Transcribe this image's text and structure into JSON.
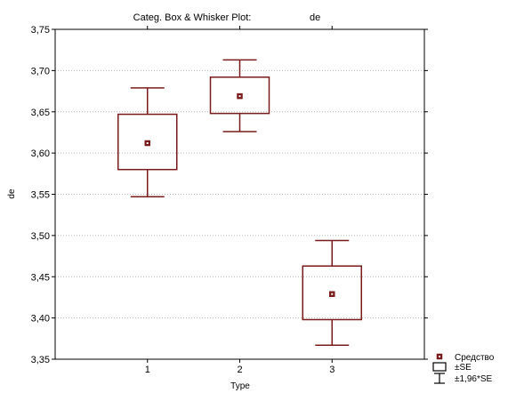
{
  "chart_data": {
    "type": "box",
    "title_prefix": "Categ. Box & Whisker Plot:",
    "title_variable": "de",
    "xlabel": "Type",
    "ylabel": "de",
    "categories": [
      "1",
      "2",
      "3"
    ],
    "x_range": [
      0,
      4
    ],
    "ylim": [
      3.35,
      3.75
    ],
    "yticks": [
      "3,35",
      "3,40",
      "3,45",
      "3,50",
      "3,55",
      "3,60",
      "3,65",
      "3,70",
      "3,75"
    ],
    "ytick_values": [
      3.35,
      3.4,
      3.45,
      3.5,
      3.55,
      3.6,
      3.65,
      3.7,
      3.75
    ],
    "grid": true,
    "legend_position": "bottom-right",
    "series": [
      {
        "category": "1",
        "mean": 3.612,
        "se_low": 3.58,
        "se_high": 3.647,
        "ci_low": 3.547,
        "ci_high": 3.679
      },
      {
        "category": "2",
        "mean": 3.669,
        "se_low": 3.648,
        "se_high": 3.692,
        "ci_low": 3.626,
        "ci_high": 3.713
      },
      {
        "category": "3",
        "mean": 3.429,
        "se_low": 3.398,
        "se_high": 3.463,
        "ci_low": 3.367,
        "ci_high": 3.494
      }
    ],
    "legend": [
      {
        "label": "Средство",
        "marker": "mean"
      },
      {
        "label": "±SE",
        "marker": "box"
      },
      {
        "label": "±1,96*SE",
        "marker": "whisker"
      }
    ],
    "colors": {
      "series": "#7b1a1a",
      "grid": "#b4b4b4",
      "axis": "#000000"
    }
  }
}
